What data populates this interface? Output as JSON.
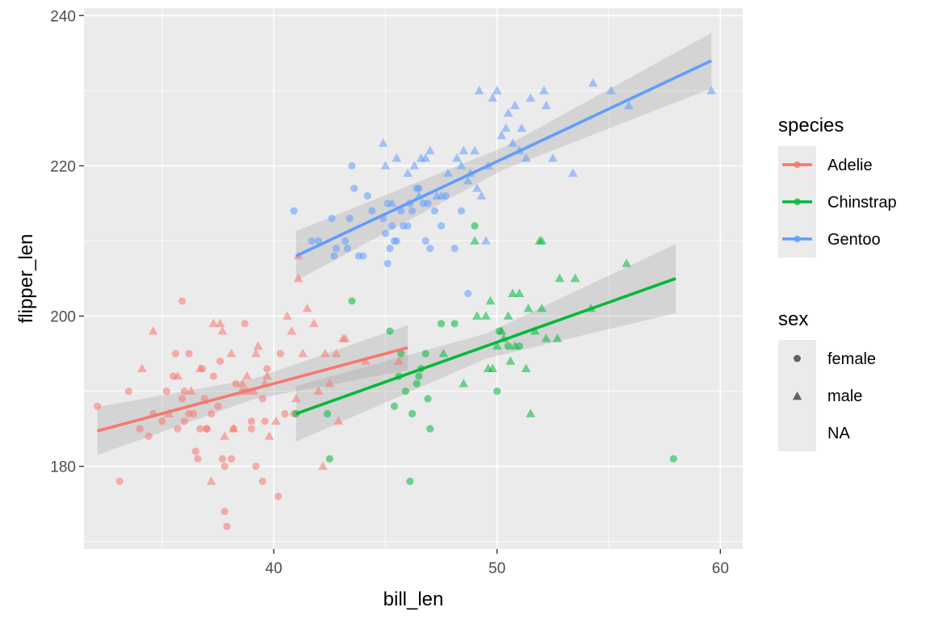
{
  "chart_data": {
    "type": "scatter",
    "xlabel": "bill_len",
    "ylabel": "flipper_len",
    "xlim": [
      31.5,
      61
    ],
    "ylim": [
      169,
      241
    ],
    "x_ticks": [
      40,
      50,
      60
    ],
    "y_ticks": [
      180,
      200,
      220,
      240
    ],
    "grid": true,
    "legend_position": "right",
    "legend_species": {
      "title": "species",
      "entries": [
        {
          "label": "Adelie",
          "color": "#F8766D"
        },
        {
          "label": "Chinstrap",
          "color": "#00BA38"
        },
        {
          "label": "Gentoo",
          "color": "#619CFF"
        }
      ]
    },
    "legend_sex": {
      "title": "sex",
      "entries": [
        {
          "label": "female",
          "shape": "circle"
        },
        {
          "label": "male",
          "shape": "triangle"
        },
        {
          "label": "NA",
          "shape": "none"
        }
      ]
    },
    "series": [
      {
        "species": "Adelie",
        "color": "#F8766D",
        "fit": {
          "x": [
            32.1,
            46.0
          ],
          "y": [
            184.7,
            195.8
          ],
          "ci_halfwidth": [
            3.2,
            3.0
          ]
        },
        "female": [
          [
            32.1,
            188
          ],
          [
            33.1,
            178
          ],
          [
            33.5,
            190
          ],
          [
            34.0,
            185
          ],
          [
            34.4,
            184
          ],
          [
            34.6,
            187
          ],
          [
            35.0,
            186
          ],
          [
            35.2,
            190
          ],
          [
            35.5,
            192
          ],
          [
            35.6,
            195
          ],
          [
            35.7,
            185
          ],
          [
            35.9,
            202
          ],
          [
            35.9,
            189
          ],
          [
            36.0,
            190
          ],
          [
            36.0,
            186
          ],
          [
            36.2,
            187
          ],
          [
            36.2,
            195
          ],
          [
            36.4,
            187
          ],
          [
            36.5,
            182
          ],
          [
            36.6,
            181
          ],
          [
            36.7,
            185
          ],
          [
            36.8,
            193
          ],
          [
            37.0,
            185
          ],
          [
            37.0,
            185
          ],
          [
            37.2,
            187
          ],
          [
            37.3,
            192
          ],
          [
            37.5,
            188
          ],
          [
            37.6,
            194
          ],
          [
            37.7,
            181
          ],
          [
            37.8,
            180
          ],
          [
            37.8,
            174
          ],
          [
            37.9,
            172
          ],
          [
            38.1,
            181
          ],
          [
            38.2,
            185
          ],
          [
            38.3,
            191
          ],
          [
            38.6,
            190
          ],
          [
            38.7,
            199
          ],
          [
            38.8,
            190
          ],
          [
            39.0,
            186
          ],
          [
            39.0,
            185
          ],
          [
            39.2,
            180
          ],
          [
            39.5,
            178
          ],
          [
            39.5,
            189
          ],
          [
            39.6,
            186
          ],
          [
            39.7,
            193
          ],
          [
            40.2,
            176
          ],
          [
            40.3,
            195
          ],
          [
            40.5,
            187
          ],
          [
            40.9,
            187
          ],
          [
            36.9,
            189
          ]
        ],
        "male": [
          [
            34.1,
            193
          ],
          [
            34.6,
            198
          ],
          [
            35.3,
            187
          ],
          [
            35.7,
            192
          ],
          [
            36.3,
            190
          ],
          [
            36.7,
            193
          ],
          [
            37.2,
            178
          ],
          [
            37.3,
            199
          ],
          [
            37.6,
            199
          ],
          [
            37.7,
            198
          ],
          [
            37.8,
            184
          ],
          [
            38.1,
            195
          ],
          [
            38.2,
            185
          ],
          [
            38.6,
            191
          ],
          [
            38.8,
            192
          ],
          [
            39.1,
            190
          ],
          [
            39.2,
            195
          ],
          [
            39.3,
            196
          ],
          [
            39.6,
            191
          ],
          [
            39.7,
            192
          ],
          [
            40.1,
            186
          ],
          [
            40.6,
            200
          ],
          [
            40.8,
            198
          ],
          [
            41.1,
            208
          ],
          [
            41.1,
            205
          ],
          [
            41.3,
            195
          ],
          [
            41.5,
            201
          ],
          [
            41.8,
            199
          ],
          [
            42.0,
            190
          ],
          [
            42.3,
            195
          ],
          [
            42.5,
            191
          ],
          [
            42.8,
            195
          ],
          [
            42.9,
            186
          ],
          [
            43.1,
            197
          ],
          [
            43.2,
            197
          ],
          [
            44.1,
            194
          ],
          [
            45.6,
            194
          ],
          [
            39.8,
            184
          ],
          [
            41.0,
            189
          ],
          [
            42.2,
            180
          ]
        ]
      },
      {
        "species": "Chinstrap",
        "color": "#00BA38",
        "fit": {
          "x": [
            41.0,
            58.0
          ],
          "y": [
            187.0,
            205.0
          ],
          "ci_halfwidth": [
            3.7,
            4.6
          ]
        },
        "female": [
          [
            41.0,
            187
          ],
          [
            42.4,
            187
          ],
          [
            42.5,
            181
          ],
          [
            43.5,
            202
          ],
          [
            45.2,
            198
          ],
          [
            45.4,
            188
          ],
          [
            45.6,
            192
          ],
          [
            45.7,
            195
          ],
          [
            45.9,
            190
          ],
          [
            46.1,
            178
          ],
          [
            46.2,
            187
          ],
          [
            46.4,
            191
          ],
          [
            46.5,
            192
          ],
          [
            46.6,
            193
          ],
          [
            46.8,
            195
          ],
          [
            46.9,
            189
          ],
          [
            47.0,
            185
          ],
          [
            47.5,
            199
          ],
          [
            48.1,
            199
          ],
          [
            49.0,
            212
          ],
          [
            50.0,
            190
          ],
          [
            50.1,
            198
          ],
          [
            50.5,
            196
          ],
          [
            51.0,
            196
          ],
          [
            57.9,
            181
          ]
        ],
        "male": [
          [
            47.6,
            195
          ],
          [
            48.5,
            191
          ],
          [
            49.0,
            210
          ],
          [
            49.1,
            200
          ],
          [
            49.6,
            193
          ],
          [
            49.7,
            202
          ],
          [
            49.8,
            193
          ],
          [
            50.0,
            196
          ],
          [
            50.2,
            198
          ],
          [
            50.3,
            197
          ],
          [
            50.5,
            200
          ],
          [
            50.6,
            194
          ],
          [
            50.7,
            203
          ],
          [
            50.8,
            196
          ],
          [
            51.0,
            203
          ],
          [
            51.3,
            193
          ],
          [
            51.4,
            201
          ],
          [
            51.5,
            187
          ],
          [
            51.7,
            198
          ],
          [
            52.0,
            210
          ],
          [
            52.2,
            197
          ],
          [
            52.7,
            197
          ],
          [
            52.8,
            205
          ],
          [
            53.5,
            205
          ],
          [
            54.2,
            201
          ],
          [
            55.8,
            207
          ],
          [
            49.5,
            200
          ],
          [
            51.9,
            210
          ],
          [
            52.0,
            201
          ]
        ]
      },
      {
        "species": "Gentoo",
        "color": "#619CFF",
        "fit": {
          "x": [
            41.0,
            59.6
          ],
          "y": [
            208.0,
            234.0
          ],
          "ci_halfwidth": [
            3.3,
            3.7
          ]
        },
        "female": [
          [
            40.9,
            214
          ],
          [
            41.7,
            210
          ],
          [
            42.0,
            210
          ],
          [
            42.6,
            213
          ],
          [
            42.7,
            208
          ],
          [
            42.8,
            209
          ],
          [
            43.2,
            210
          ],
          [
            43.3,
            209
          ],
          [
            43.4,
            213
          ],
          [
            43.5,
            220
          ],
          [
            43.6,
            217
          ],
          [
            43.8,
            208
          ],
          [
            44.0,
            208
          ],
          [
            44.2,
            216
          ],
          [
            44.4,
            214
          ],
          [
            44.9,
            213
          ],
          [
            45.0,
            211
          ],
          [
            45.1,
            207
          ],
          [
            45.2,
            209
          ],
          [
            45.3,
            212
          ],
          [
            45.4,
            210
          ],
          [
            45.5,
            210
          ],
          [
            45.7,
            214
          ],
          [
            45.8,
            212
          ],
          [
            46.0,
            212
          ],
          [
            46.1,
            215
          ],
          [
            46.2,
            214
          ],
          [
            46.4,
            217
          ],
          [
            46.5,
            217
          ],
          [
            46.7,
            215
          ],
          [
            46.8,
            210
          ],
          [
            47.0,
            209
          ],
          [
            47.2,
            214
          ],
          [
            47.5,
            212
          ],
          [
            47.7,
            216
          ],
          [
            48.1,
            209
          ],
          [
            48.4,
            214
          ],
          [
            48.7,
            203
          ],
          [
            45.1,
            215
          ],
          [
            46.9,
            215
          ]
        ],
        "male": [
          [
            44.9,
            223
          ],
          [
            45.0,
            220
          ],
          [
            45.3,
            215
          ],
          [
            45.5,
            221
          ],
          [
            46.0,
            219
          ],
          [
            46.3,
            220
          ],
          [
            46.5,
            216
          ],
          [
            46.6,
            221
          ],
          [
            46.8,
            221
          ],
          [
            47.0,
            222
          ],
          [
            47.3,
            216
          ],
          [
            47.5,
            216
          ],
          [
            47.8,
            219
          ],
          [
            48.2,
            221
          ],
          [
            48.4,
            220
          ],
          [
            48.5,
            222
          ],
          [
            48.7,
            218
          ],
          [
            48.8,
            219
          ],
          [
            49.0,
            222
          ],
          [
            49.1,
            217
          ],
          [
            49.3,
            216
          ],
          [
            49.5,
            210
          ],
          [
            49.6,
            220
          ],
          [
            49.8,
            229
          ],
          [
            50.0,
            230
          ],
          [
            50.2,
            224
          ],
          [
            50.4,
            225
          ],
          [
            50.5,
            227
          ],
          [
            50.8,
            228
          ],
          [
            51.1,
            225
          ],
          [
            51.3,
            221
          ],
          [
            51.5,
            229
          ],
          [
            52.1,
            230
          ],
          [
            52.2,
            228
          ],
          [
            52.5,
            221
          ],
          [
            53.4,
            219
          ],
          [
            54.3,
            231
          ],
          [
            55.1,
            230
          ],
          [
            55.9,
            228
          ],
          [
            59.6,
            230
          ],
          [
            49.2,
            230
          ],
          [
            50.7,
            223
          ],
          [
            51.0,
            222
          ]
        ]
      }
    ]
  }
}
